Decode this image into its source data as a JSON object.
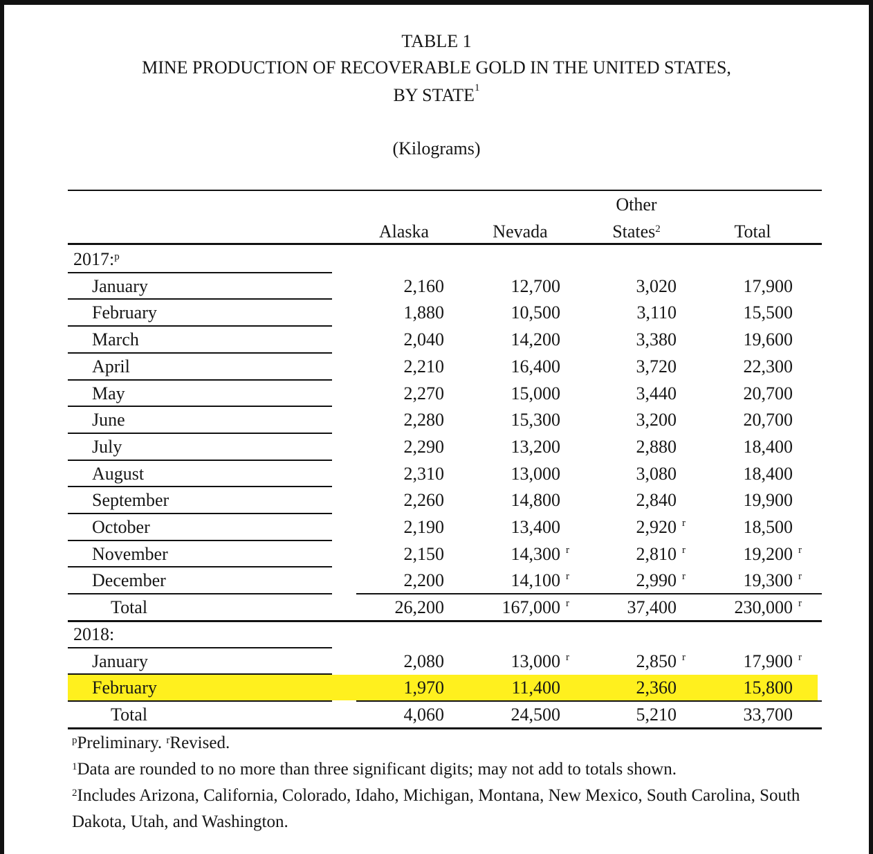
{
  "header": {
    "table_no": "TABLE 1",
    "title_line1": "MINE PRODUCTION OF RECOVERABLE GOLD IN THE UNITED STATES,",
    "title_line2": "BY STATE",
    "title_note": "1",
    "unit": "(Kilograms)"
  },
  "table": {
    "columns": [
      {
        "label": "Alaska"
      },
      {
        "label": "Nevada"
      },
      {
        "top": "Other",
        "label": "States",
        "note": "2"
      },
      {
        "label": "Total"
      }
    ],
    "sections": [
      {
        "label": "2017:",
        "note": "p",
        "rows": [
          {
            "label": "January",
            "cells": [
              "2,160",
              "12,700",
              "3,020",
              "17,900"
            ]
          },
          {
            "label": "February",
            "cells": [
              "1,880",
              "10,500",
              "3,110",
              "15,500"
            ]
          },
          {
            "label": "March",
            "cells": [
              "2,040",
              "14,200",
              "3,380",
              "19,600"
            ]
          },
          {
            "label": "April",
            "cells": [
              "2,210",
              "16,400",
              "3,720",
              "22,300"
            ]
          },
          {
            "label": "May",
            "cells": [
              "2,270",
              "15,000",
              "3,440",
              "20,700"
            ]
          },
          {
            "label": "June",
            "cells": [
              "2,280",
              "15,300",
              "3,200",
              "20,700"
            ]
          },
          {
            "label": "July",
            "cells": [
              "2,290",
              "13,200",
              "2,880",
              "18,400"
            ]
          },
          {
            "label": "August",
            "cells": [
              "2,310",
              "13,000",
              "3,080",
              "18,400"
            ]
          },
          {
            "label": "September",
            "cells": [
              "2,260",
              "14,800",
              "2,840",
              "19,900"
            ]
          },
          {
            "label": "October",
            "cells": [
              "2,190",
              "13,400",
              {
                "text": "2,920",
                "note": "r"
              },
              "18,500"
            ]
          },
          {
            "label": "November",
            "cells": [
              "2,150",
              {
                "text": "14,300",
                "note": "r"
              },
              {
                "text": "2,810",
                "note": "r"
              },
              {
                "text": "19,200",
                "note": "r"
              }
            ]
          },
          {
            "label": "December",
            "cells": [
              "2,200",
              {
                "text": "14,100",
                "note": "r"
              },
              {
                "text": "2,990",
                "note": "r"
              },
              {
                "text": "19,300",
                "note": "r"
              }
            ]
          }
        ],
        "total": {
          "label": "Total",
          "cells": [
            "26,200",
            {
              "text": "167,000",
              "note": "r"
            },
            "37,400",
            {
              "text": "230,000",
              "note": "r"
            }
          ]
        }
      },
      {
        "label": "2018:",
        "rows": [
          {
            "label": "January",
            "cells": [
              "2,080",
              {
                "text": "13,000",
                "note": "r"
              },
              {
                "text": "2,850",
                "note": "r"
              },
              {
                "text": "17,900",
                "note": "r"
              }
            ]
          },
          {
            "label": "February",
            "cells": [
              "1,970",
              "11,400",
              "2,360",
              "15,800"
            ],
            "highlight": true
          }
        ],
        "total": {
          "label": "Total",
          "cells": [
            "4,060",
            "24,500",
            "5,210",
            "33,700"
          ]
        }
      }
    ]
  },
  "footnotes": [
    {
      "parts": [
        {
          "note": "p",
          "text": "Preliminary."
        },
        {
          "note": "r",
          "text": "Revised."
        }
      ]
    },
    {
      "parts": [
        {
          "note": "1",
          "text": "Data are rounded to no more than three significant digits; may not add to totals shown."
        }
      ]
    },
    {
      "parts": [
        {
          "note": "2",
          "text": "Includes Arizona, California, Colorado, Idaho, Michigan, Montana, New Mexico, South Carolina, South Dakota, Utah, and Washington."
        }
      ]
    }
  ]
}
